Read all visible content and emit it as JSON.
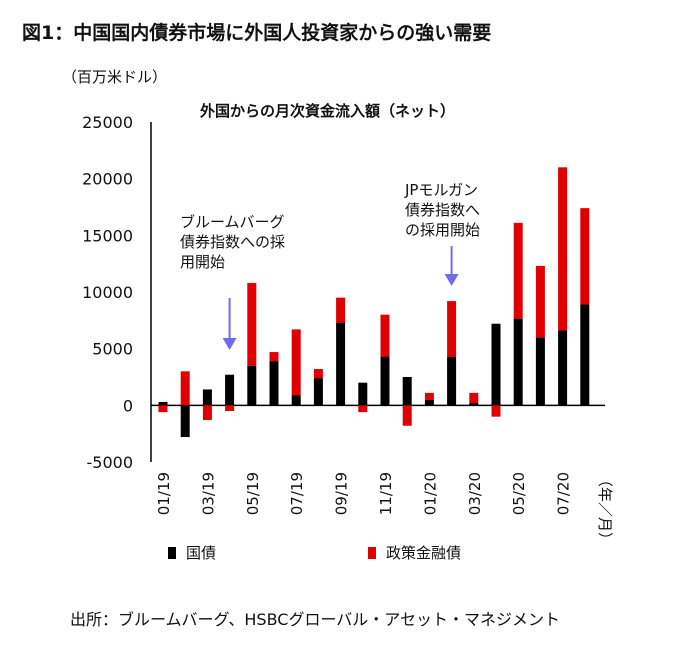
{
  "title": "図1：中国国内債券市場に外国人投資家からの強い需要",
  "source": "出所：ブルームバーグ、HSBCグローバル・アセット・マネジメント",
  "colors": {
    "gov": "#000000",
    "policy": "#e00000",
    "arrow": "#6f6cf0"
  },
  "annotations": [
    {
      "lines": [
        "ブルームバーグ",
        "債券指数への採",
        "用開始"
      ],
      "month": "04/19"
    },
    {
      "lines": [
        "JPモルガン",
        "債券指数へ",
        "の採用開始"
      ],
      "month": "02/20"
    }
  ],
  "chart_data": {
    "type": "bar",
    "stacked": true,
    "title": "外国からの月次資金流入額（ネット）",
    "ylabel": "（百万米ドル）",
    "xlabel": "（年／月）",
    "ylim": [
      -5000,
      25000
    ],
    "yticks": [
      "25000",
      "20000",
      "15000",
      "10000",
      "5000",
      "0",
      "-5000"
    ],
    "categories": [
      "01/19",
      "02/19",
      "03/19",
      "04/19",
      "05/19",
      "06/19",
      "07/19",
      "08/19",
      "09/19",
      "10/19",
      "11/19",
      "12/19",
      "01/20",
      "02/20",
      "03/20",
      "04/20",
      "05/20",
      "06/20",
      "07/20",
      "08/20"
    ],
    "xticklabels": [
      "01/19",
      "03/19",
      "05/19",
      "07/19",
      "09/19",
      "11/19",
      "01/20",
      "03/20",
      "05/20",
      "07/20"
    ],
    "series": [
      {
        "name": "国債",
        "values": [
          300,
          -2800,
          1400,
          2700,
          3500,
          3900,
          900,
          2400,
          7300,
          2000,
          4300,
          2500,
          500,
          4300,
          200,
          7200,
          7650,
          6000,
          6600,
          8900
        ]
      },
      {
        "name": "政策金融債",
        "values": [
          -600,
          3000,
          -1300,
          -500,
          7300,
          800,
          5800,
          800,
          2200,
          -600,
          3700,
          -1800,
          600,
          4900,
          900,
          -1000,
          8450,
          6300,
          14400,
          8500
        ]
      }
    ],
    "legend": "bottom"
  }
}
